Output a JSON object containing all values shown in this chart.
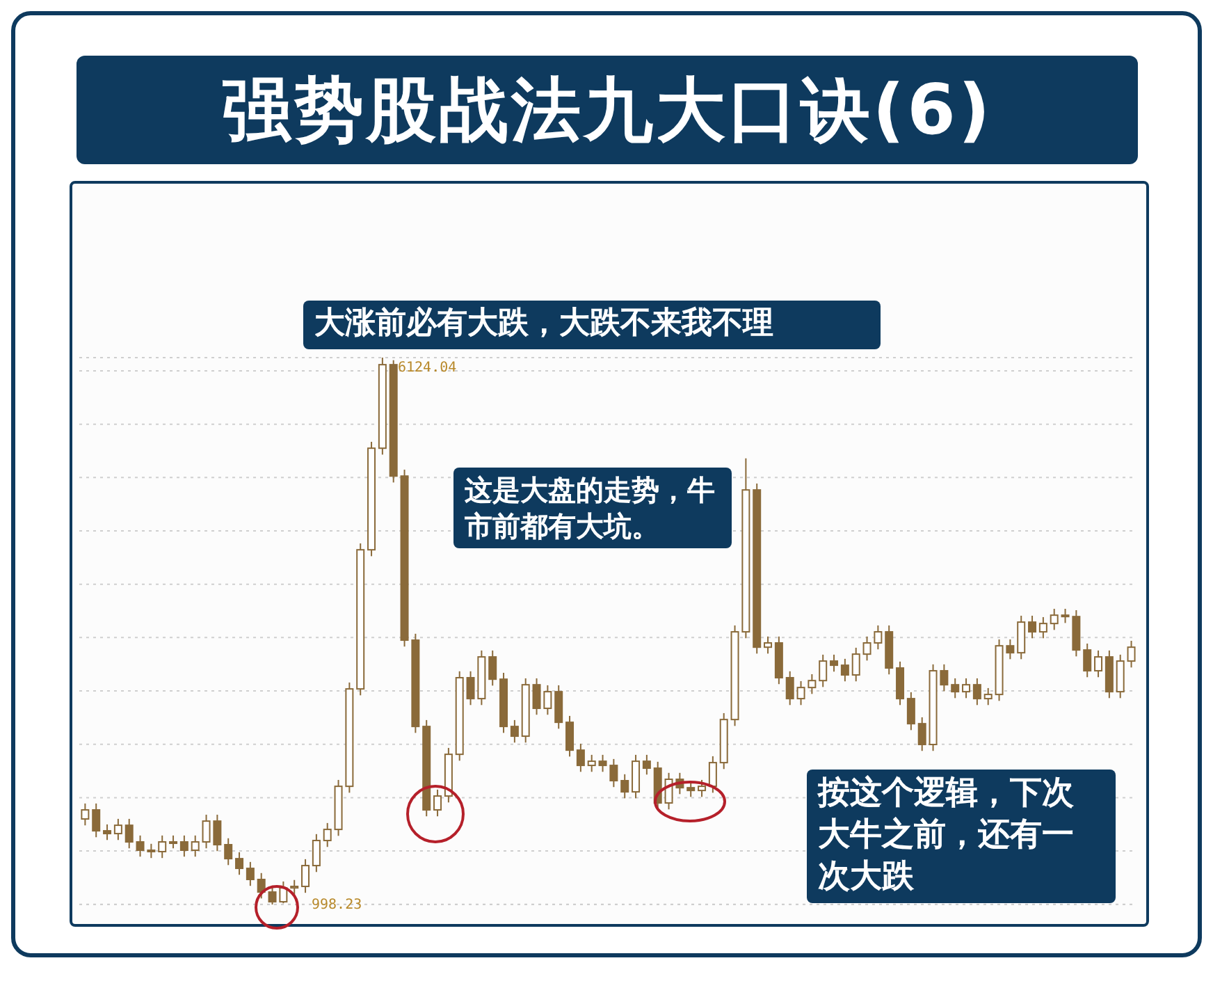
{
  "chart_data": {
    "type": "candlestick",
    "title": "强势股战法九大口诀(6)",
    "categories": [
      null,
      null,
      null,
      null,
      null,
      null,
      null,
      null,
      null,
      null,
      null,
      null,
      null,
      null,
      null,
      null,
      null,
      null,
      null,
      null,
      null,
      null,
      null,
      null,
      null,
      null,
      null,
      null,
      null,
      null,
      null,
      null,
      null,
      null,
      null,
      null,
      null,
      null,
      null,
      null,
      null,
      null,
      null,
      null,
      null,
      null,
      null,
      null,
      null,
      null,
      null,
      null,
      null,
      null,
      null,
      null,
      null,
      null,
      null,
      null,
      null,
      null,
      null,
      null,
      null,
      null,
      null,
      null,
      null,
      null,
      null,
      null,
      null,
      null,
      null,
      null,
      null,
      null,
      null,
      null,
      null,
      null,
      null,
      null,
      null,
      null,
      null,
      null,
      null,
      null,
      null,
      null,
      null,
      null,
      null,
      null
    ],
    "color": "#8a6a3a",
    "ohlc": [
      [
        1800,
        1945,
        1740,
        1885
      ],
      [
        1885,
        1945,
        1629,
        1689
      ],
      [
        1689,
        1749,
        1603,
        1663
      ],
      [
        1663,
        1801,
        1603,
        1741
      ],
      [
        1741,
        1801,
        1525,
        1585
      ],
      [
        1585,
        1645,
        1447,
        1507
      ],
      [
        1507,
        1567,
        1434,
        1494
      ],
      [
        1494,
        1645,
        1434,
        1585
      ],
      [
        1585,
        1645,
        1525,
        1585
      ],
      [
        1585,
        1645,
        1447,
        1507
      ],
      [
        1507,
        1645,
        1447,
        1585
      ],
      [
        1585,
        1840,
        1525,
        1780
      ],
      [
        1780,
        1840,
        1499,
        1559
      ],
      [
        1559,
        1619,
        1368,
        1428
      ],
      [
        1428,
        1488,
        1277,
        1337
      ],
      [
        1337,
        1397,
        1173,
        1233
      ],
      [
        1233,
        1293,
        1055,
        1115
      ],
      [
        1115,
        1175,
        998.23,
        1024
      ],
      [
        1024,
        1214,
        1010,
        1154
      ],
      [
        1154,
        1228,
        1094,
        1168
      ],
      [
        1168,
        1423,
        1108,
        1363
      ],
      [
        1363,
        1658,
        1303,
        1598
      ],
      [
        1598,
        1762,
        1538,
        1702
      ],
      [
        1702,
        2166,
        1642,
        2106
      ],
      [
        2106,
        3079,
        2046,
        3019
      ],
      [
        3019,
        4383,
        2959,
        4323
      ],
      [
        4323,
        5335,
        4263,
        5275
      ],
      [
        5275,
        6124.04,
        5215,
        6058
      ],
      [
        6058,
        6100,
        4954,
        5014
      ],
      [
        5014,
        5074,
        3416,
        3476
      ],
      [
        3476,
        3536,
        2607,
        2667
      ],
      [
        2667,
        2727,
        1825,
        1885
      ],
      [
        1885,
        2075,
        1825,
        2015
      ],
      [
        2015,
        2466,
        1955,
        2406
      ],
      [
        2406,
        3184,
        2346,
        3124
      ],
      [
        3124,
        3184,
        2868,
        2928
      ],
      [
        2928,
        3379,
        2868,
        3319
      ],
      [
        3319,
        3379,
        3050,
        3110
      ],
      [
        3110,
        3170,
        2607,
        2667
      ],
      [
        2667,
        2727,
        2516,
        2576
      ],
      [
        2576,
        3118,
        2516,
        3058
      ],
      [
        3058,
        3118,
        2777,
        2837
      ],
      [
        2837,
        3053,
        2777,
        2993
      ],
      [
        2993,
        3053,
        2646,
        2706
      ],
      [
        2706,
        2766,
        2385,
        2445
      ],
      [
        2445,
        2505,
        2242,
        2302
      ],
      [
        2302,
        2401,
        2242,
        2341
      ],
      [
        2341,
        2401,
        2242,
        2302
      ],
      [
        2302,
        2362,
        2099,
        2159
      ],
      [
        2159,
        2219,
        1994,
        2054
      ],
      [
        2054,
        2401,
        1994,
        2341
      ],
      [
        2341,
        2401,
        2216,
        2276
      ],
      [
        2276,
        2336,
        1890,
        1950
      ],
      [
        1950,
        2232,
        1890,
        2172
      ],
      [
        2172,
        2232,
        2033,
        2093
      ],
      [
        2093,
        2153,
        2007,
        2067
      ],
      [
        2067,
        2166,
        2007,
        2106
      ],
      [
        2106,
        2388,
        2046,
        2328
      ],
      [
        2328,
        2792,
        2268,
        2732
      ],
      [
        2732,
        3614,
        2672,
        3554
      ],
      [
        3554,
        5180,
        3494,
        4884
      ],
      [
        4884,
        4944,
        3350,
        3410
      ],
      [
        3410,
        3510,
        3350,
        3450
      ],
      [
        3450,
        3510,
        3064,
        3124
      ],
      [
        3124,
        3184,
        2868,
        2928
      ],
      [
        2928,
        3092,
        2868,
        3032
      ],
      [
        3032,
        3157,
        2972,
        3097
      ],
      [
        3097,
        3340,
        3037,
        3280
      ],
      [
        3280,
        3340,
        3181,
        3241
      ],
      [
        3241,
        3301,
        3090,
        3150
      ],
      [
        3150,
        3405,
        3090,
        3345
      ],
      [
        3345,
        3510,
        3285,
        3450
      ],
      [
        3450,
        3614,
        3390,
        3554
      ],
      [
        3554,
        3614,
        3155,
        3215
      ],
      [
        3215,
        3275,
        2868,
        2928
      ],
      [
        2928,
        2988,
        2633,
        2693
      ],
      [
        2693,
        2753,
        2438,
        2498
      ],
      [
        2498,
        3249,
        2438,
        3189
      ],
      [
        3189,
        3249,
        2998,
        3058
      ],
      [
        3058,
        3118,
        2933,
        2993
      ],
      [
        2993,
        3118,
        2933,
        3058
      ],
      [
        3058,
        3118,
        2868,
        2928
      ],
      [
        2928,
        3027,
        2868,
        2967
      ],
      [
        2967,
        3483,
        2907,
        3423
      ],
      [
        3423,
        3483,
        3298,
        3358
      ],
      [
        3358,
        3705,
        3298,
        3645
      ],
      [
        3645,
        3705,
        3494,
        3554
      ],
      [
        3554,
        3692,
        3494,
        3632
      ],
      [
        3632,
        3770,
        3572,
        3710
      ],
      [
        3710,
        3770,
        3637,
        3697
      ],
      [
        3697,
        3757,
        3324,
        3384
      ],
      [
        3384,
        3444,
        3129,
        3189
      ],
      [
        3189,
        3379,
        3129,
        3319
      ],
      [
        3319,
        3379,
        2933,
        2993
      ],
      [
        2993,
        3340,
        2933,
        3280
      ],
      [
        3280,
        3470,
        3220,
        3410
      ]
    ],
    "yticks": [
      {
        "value": 1000,
        "label": null
      },
      {
        "value": 1500,
        "label": null
      },
      {
        "value": 2000,
        "label": null
      },
      {
        "value": 2500,
        "label": null
      },
      {
        "value": 3000,
        "label": null
      },
      {
        "value": 3500,
        "label": null
      },
      {
        "value": 4000,
        "label": null
      },
      {
        "value": 4500,
        "label": null
      },
      {
        "value": 5000,
        "label": null
      },
      {
        "value": 5500,
        "label": null
      },
      {
        "value": 6000,
        "label": null
      }
    ],
    "grid": "y",
    "annotations": [
      "大涨前必有大跌，大跌不来我不理",
      "这是大盘的走势，牛市前都有大坑。",
      "按这个逻辑，下次大牛之前，还有一次大跌",
      "6124.04",
      "998.23"
    ]
  }
}
